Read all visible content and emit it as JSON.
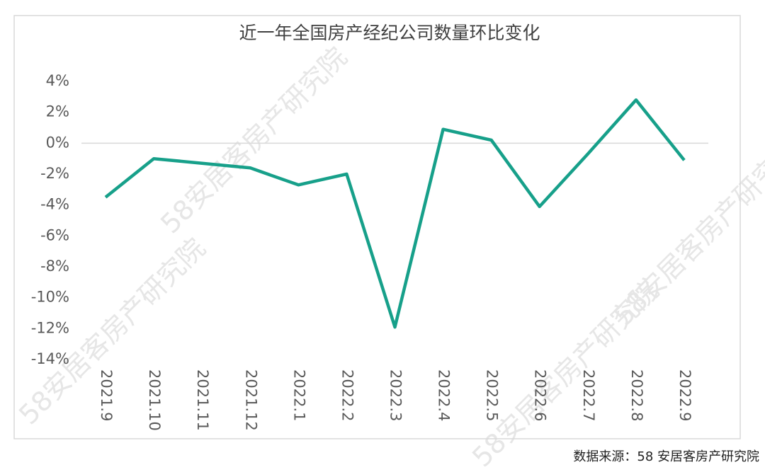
{
  "chart_data": {
    "type": "line",
    "title": "近一年全国房产经纪公司数量环比变化",
    "categories": [
      "2021.9",
      "2021.10",
      "2021.11",
      "2021.12",
      "2022.1",
      "2022.2",
      "2022.3",
      "2022.4",
      "2022.5",
      "2022.6",
      "2022.7",
      "2022.8",
      "2022.9"
    ],
    "values": [
      -3.5,
      -1.0,
      -1.3,
      -1.6,
      -2.7,
      -2.0,
      -11.9,
      0.9,
      0.2,
      -4.1,
      -0.7,
      2.8,
      -1.1
    ],
    "color": "#17a08a",
    "ylim": [
      -14,
      4
    ],
    "yticks": [
      {
        "value": 4,
        "label": "4%"
      },
      {
        "value": 2,
        "label": "2%"
      },
      {
        "value": 0,
        "label": "0%"
      },
      {
        "value": -2,
        "label": "-2%"
      },
      {
        "value": -4,
        "label": "-4%"
      },
      {
        "value": -6,
        "label": "-6%"
      },
      {
        "value": -8,
        "label": "-8%"
      },
      {
        "value": -10,
        "label": "-10%"
      },
      {
        "value": -12,
        "label": "-12%"
      },
      {
        "value": -14,
        "label": "-14%"
      }
    ],
    "source": "数据来源：58 安居客房产研究院",
    "watermark": "58安居客房产研究院"
  }
}
